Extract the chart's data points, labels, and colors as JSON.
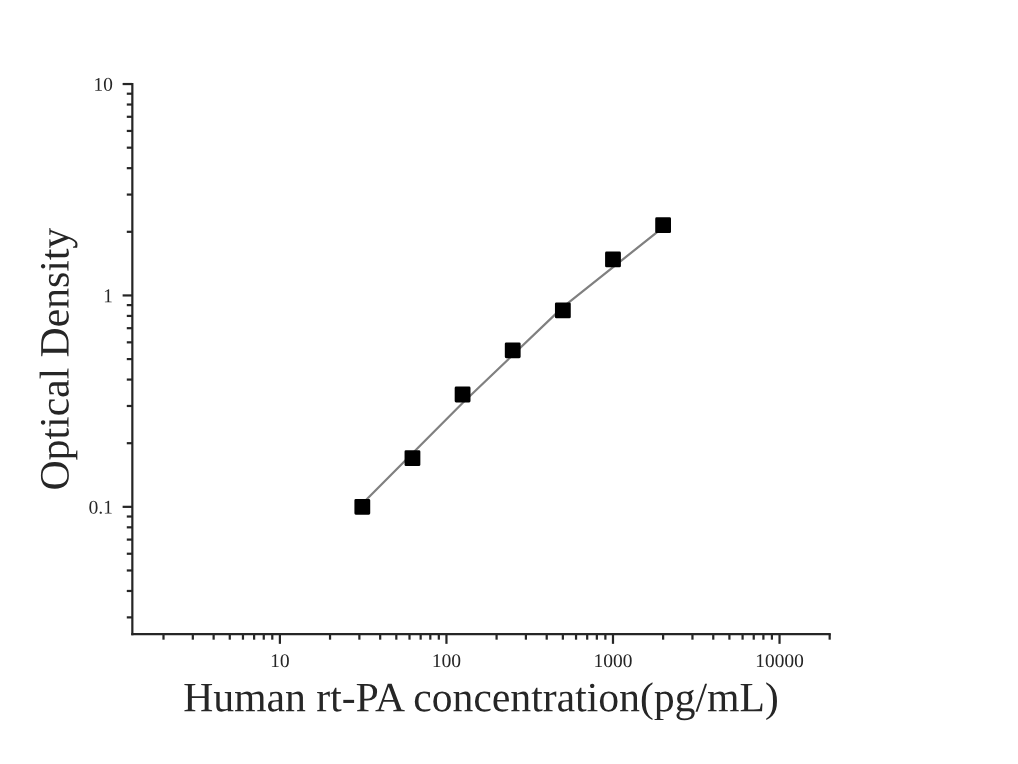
{
  "chart_data": {
    "type": "scatter",
    "xlabel": "Human rt-PA concentration(pg/mL)",
    "ylabel": "Optical Density",
    "log": "xy",
    "grid": false,
    "xlim": [
      1.3,
      20000
    ],
    "xticks": [
      10,
      100,
      1000,
      10000
    ],
    "ylim": [
      0.025,
      10
    ],
    "yticks": [
      0.1,
      1,
      10
    ],
    "series": [
      {
        "marker": "square",
        "color": "#000000",
        "x": [
          31.25,
          62.5,
          125,
          250,
          500,
          1000,
          2000
        ],
        "values": [
          0.1,
          0.17,
          0.34,
          0.55,
          0.85,
          1.48,
          2.15
        ]
      },
      {
        "type": "line",
        "marker": "none",
        "color": "#808080",
        "x": [
          33,
          125,
          500,
          2000
        ],
        "values": [
          0.108,
          0.31,
          0.88,
          2.1
        ]
      }
    ]
  }
}
